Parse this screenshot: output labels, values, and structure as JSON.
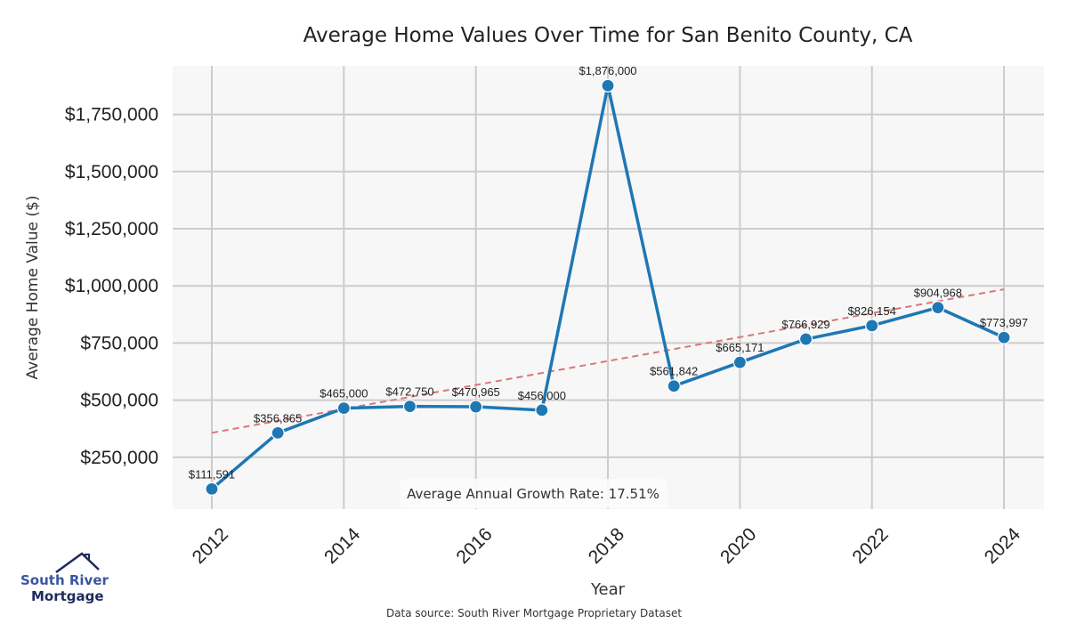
{
  "chart_data": {
    "type": "line",
    "title": "Average Home Values Over Time for San Benito County, CA",
    "xlabel": "Year",
    "ylabel": "Average Home Value ($)",
    "x": [
      2012,
      2013,
      2014,
      2015,
      2016,
      2017,
      2018,
      2019,
      2020,
      2021,
      2022,
      2023,
      2024
    ],
    "series": [
      {
        "name": "Average Home Value",
        "values": [
          111591,
          356865,
          465000,
          472750,
          470965,
          456000,
          1876000,
          561842,
          665171,
          766929,
          826154,
          904968,
          773997
        ],
        "labels": [
          "$111,591",
          "$356,865",
          "$465,000",
          "$472,750",
          "$470,965",
          "$456,000",
          "$1,876,000",
          "$561,842",
          "$665,171",
          "$766,929",
          "$826,154",
          "$904,968",
          "$773,997"
        ],
        "color": "#1f77b4"
      }
    ],
    "trend": {
      "name": "Trend",
      "start": [
        2012,
        357000
      ],
      "end": [
        2024,
        985000
      ],
      "color": "#d9777a",
      "style": "dashed"
    },
    "xticks": [
      2012,
      2014,
      2016,
      2018,
      2020,
      2022,
      2024
    ],
    "xtick_labels": [
      "2012",
      "2014",
      "2016",
      "2018",
      "2020",
      "2022",
      "2024"
    ],
    "yticks": [
      250000,
      500000,
      750000,
      1000000,
      1250000,
      1500000,
      1750000
    ],
    "ytick_labels": [
      "$250,000",
      "$500,000",
      "$750,000",
      "$1,000,000",
      "$1,250,000",
      "$1,500,000",
      "$1,750,000"
    ],
    "xlim": [
      2011.4,
      2024.6
    ],
    "ylim": [
      0,
      1980000
    ],
    "grid": true,
    "annotation": "Average Annual Growth Rate: 17.51%",
    "source": "Data source: South River Mortgage Proprietary Dataset",
    "background": "#f7f7f7",
    "grid_color": "#cccccc"
  },
  "logo": {
    "line1": "South River",
    "line2": "Mortgage"
  }
}
